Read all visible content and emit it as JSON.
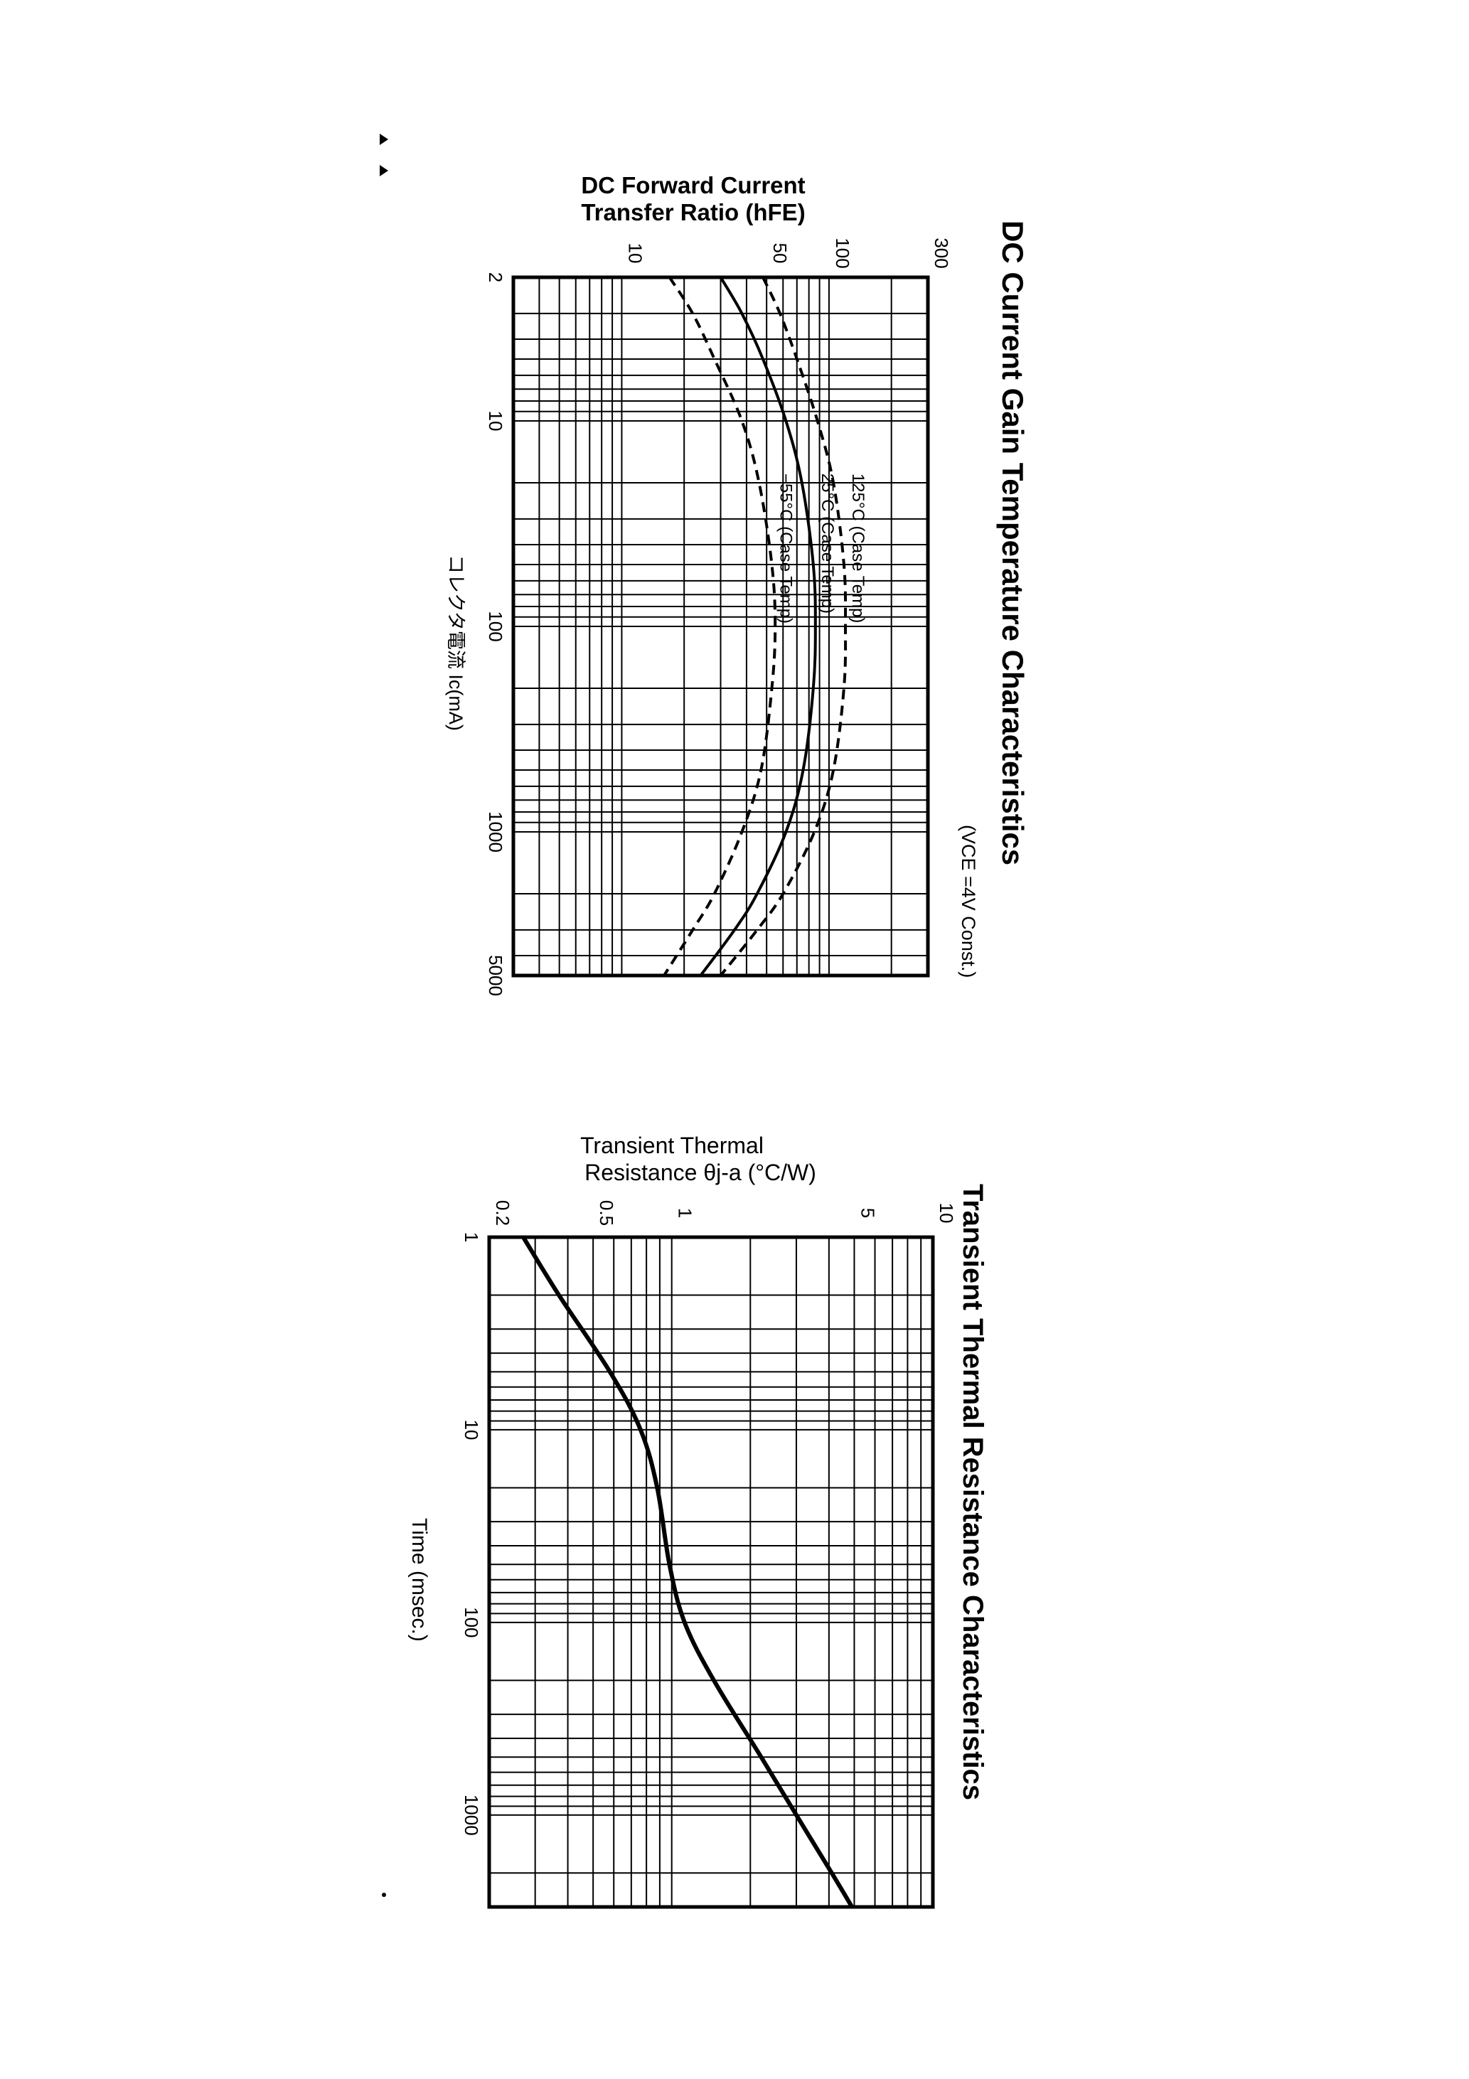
{
  "chart_data": [
    {
      "type": "line",
      "title": "DC Current Gain Temperature Characteristics",
      "subtitle": "(VCE =4V Const.)",
      "ylabel_lines": [
        "DC Forward Current",
        "Transfer Ratio (hFE)"
      ],
      "xlabel": "コレクタ電流 Ic(mA)",
      "x_scale": "log",
      "y_scale": "log",
      "xlim": [
        2,
        5000
      ],
      "ylim": [
        3,
        300
      ],
      "x_ticks": [
        2,
        10,
        100,
        1000,
        5000
      ],
      "x_tick_labels": [
        "2",
        "10",
        "100",
        "1000",
        "5000"
      ],
      "y_ticks": [
        10,
        50,
        100,
        300
      ],
      "y_tick_labels": [
        "10",
        "50",
        "100",
        "300"
      ],
      "grid": true,
      "series": [
        {
          "name": "125°C (Case Temp)",
          "style": "dashed",
          "x": [
            2,
            3,
            5,
            10,
            20,
            50,
            100,
            200,
            500,
            1000,
            2000,
            3000,
            5000
          ],
          "y": [
            48,
            58,
            70,
            88,
            105,
            118,
            120,
            118,
            105,
            85,
            60,
            45,
            30
          ]
        },
        {
          "name": "25°C (Case Temp)",
          "style": "solid",
          "x": [
            2,
            3,
            5,
            10,
            20,
            50,
            100,
            200,
            500,
            1000,
            2000,
            3000,
            5000
          ],
          "y": [
            30,
            38,
            48,
            62,
            74,
            84,
            86,
            84,
            75,
            62,
            45,
            35,
            24
          ]
        },
        {
          "name": "−55°C (Case Temp)",
          "style": "dashed",
          "x": [
            2,
            3,
            5,
            10,
            20,
            50,
            100,
            200,
            500,
            1000,
            2000,
            3000,
            5000
          ],
          "y": [
            17,
            22,
            28,
            38,
            46,
            53,
            55,
            53,
            47,
            38,
            28,
            22,
            16
          ]
        }
      ]
    },
    {
      "type": "line",
      "title": "Transient Thermal Resistance Characteristics",
      "ylabel_lines": [
        "Transient Thermal",
        "Resistance θj-a (°C/W)"
      ],
      "xlabel": "Time (msec.)",
      "x_scale": "log",
      "y_scale": "log",
      "xlim": [
        1,
        3000
      ],
      "ylim": [
        0.2,
        10
      ],
      "x_ticks": [
        1,
        10,
        100,
        1000
      ],
      "x_tick_labels": [
        "1",
        "10",
        "100",
        "1000"
      ],
      "y_ticks": [
        0.2,
        0.5,
        1,
        5,
        10
      ],
      "y_tick_labels": [
        "0.2",
        "0.5",
        "1",
        "5",
        "10"
      ],
      "grid": true,
      "series": [
        {
          "style": "solid",
          "x": [
            1,
            2,
            5,
            10,
            20,
            50,
            100,
            200,
            500,
            1000,
            2000,
            3000
          ],
          "y": [
            0.27,
            0.37,
            0.58,
            0.76,
            0.88,
            0.98,
            1.12,
            1.45,
            2.2,
            3.0,
            4.1,
            4.9
          ]
        }
      ]
    }
  ]
}
